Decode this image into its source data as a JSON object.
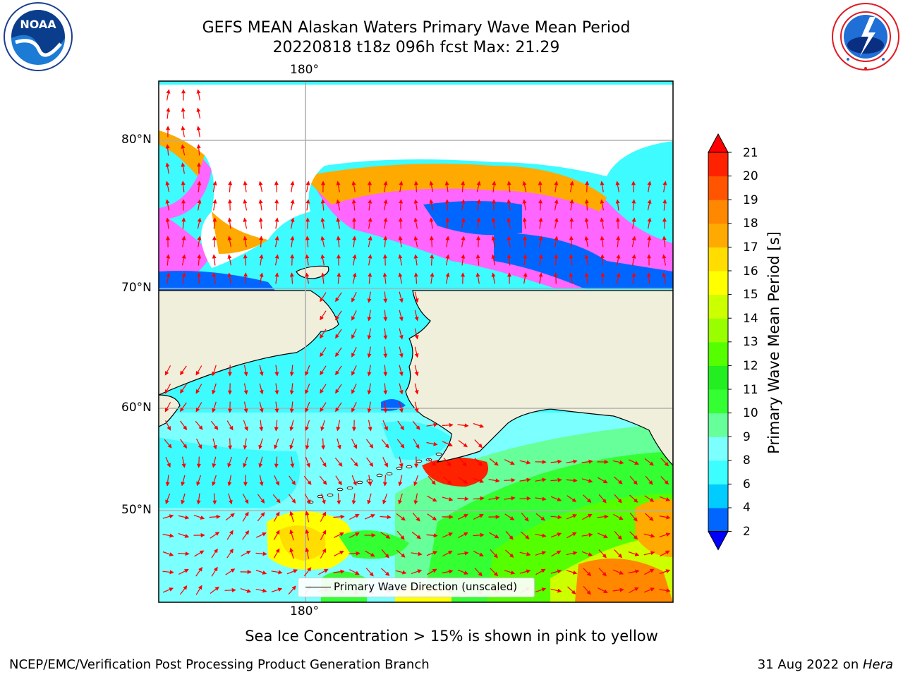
{
  "header": {
    "title_line1": "GEFS MEAN Alaskan Waters Primary Wave Mean Period",
    "title_line2": "20220818 t18z 096h fcst   Max: 21.29"
  },
  "logos": {
    "noaa_logo_text": "NOAA",
    "noaa_ring_text": "NATIONAL OCEANIC AND ATMOSPHERIC ADMINISTRATION · U.S. DEPARTMENT OF COMMERCE",
    "nws_ring_text": "NATIONAL WEATHER SERVICE"
  },
  "map": {
    "lon_labels": [
      "180°",
      "180°"
    ],
    "lat_labels": [
      "80°N",
      "70°N",
      "60°N",
      "50°N"
    ],
    "legend_label": "Primary Wave Direction (unscaled)",
    "colors": {
      "land": "#efefdb",
      "ocean_base": "#3dfbff",
      "gridline": "#b0b0b0",
      "arrow": "#ff0000",
      "coast": "#000000"
    }
  },
  "colorbar": {
    "title": "Primary Wave Mean Period [s]",
    "ticks": [
      "21",
      "20",
      "19",
      "18",
      "17",
      "16",
      "15",
      "14",
      "13",
      "12",
      "11",
      "10",
      "9",
      "8",
      "6",
      "4",
      "2"
    ],
    "colors": [
      "#0000ff",
      "#0066ff",
      "#00ccff",
      "#3cfdff",
      "#7cffff",
      "#66ff99",
      "#33ff33",
      "#22ee22",
      "#55ff00",
      "#99ff00",
      "#ccff00",
      "#ffff00",
      "#ffdd00",
      "#ffaa00",
      "#ff8800",
      "#ff5500",
      "#ff2200",
      "#ff0000"
    ]
  },
  "footer": {
    "note": "Sea Ice Concentration > 15% is shown in pink to yellow",
    "left": "NCEP/EMC/Verification Post Processing Product Generation Branch",
    "right_date": "31 Aug 2022 on ",
    "right_host": "Hera"
  }
}
